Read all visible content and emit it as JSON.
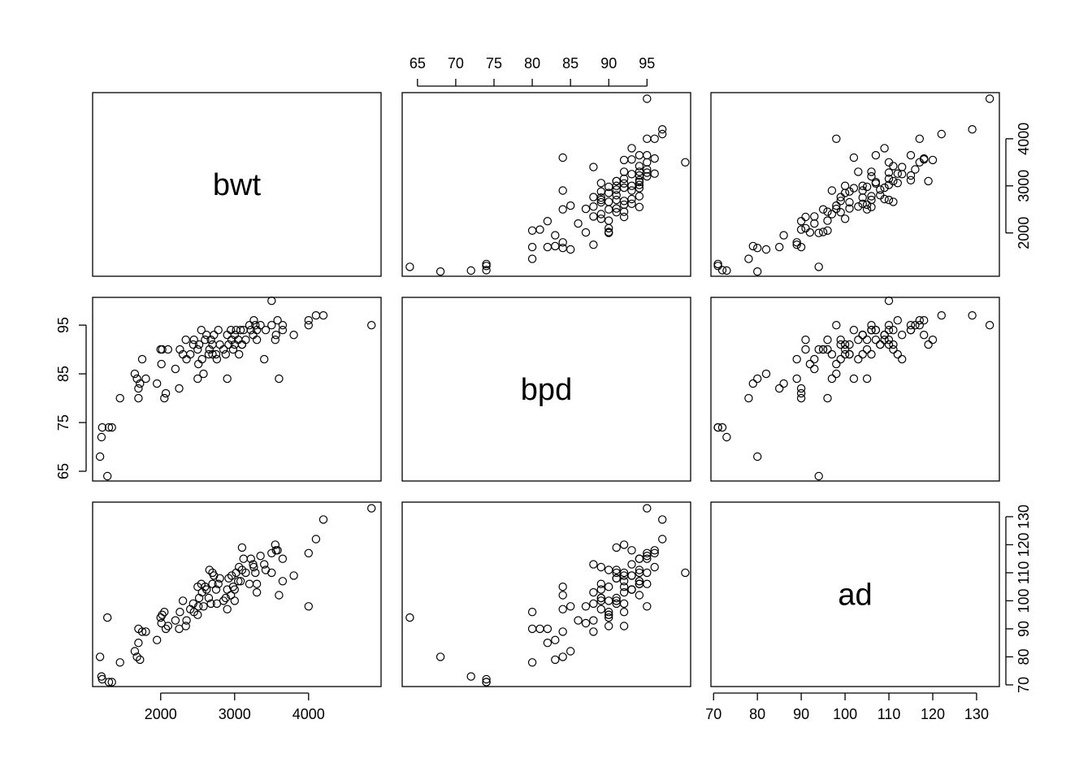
{
  "chart_data": {
    "type": "scatter",
    "subtype": "pairs",
    "variables": [
      "bwt",
      "bpd",
      "ad"
    ],
    "ranges": {
      "bwt": [
        1080,
        4980
      ],
      "bpd": [
        63,
        100.7
      ],
      "ad": [
        69.4,
        135.2
      ]
    },
    "axis_ticks": {
      "bwt": [
        2000,
        3000,
        4000
      ],
      "bpd": [
        65,
        70,
        75,
        80,
        85,
        90,
        95
      ],
      "ad": [
        70,
        80,
        90,
        100,
        110,
        120,
        130
      ]
    },
    "left_axis_ticks": {
      "bwt": [
        2000,
        3000,
        4000
      ],
      "bpd": [
        65,
        75,
        85,
        95
      ],
      "ad": [
        70,
        90,
        110,
        130
      ]
    },
    "axes_placement": {
      "top": [
        "bpd"
      ],
      "right": [
        "bwt",
        "ad"
      ],
      "bottom": [
        "bwt",
        "ad"
      ],
      "left": [
        "bpd"
      ]
    },
    "marker": "open-circle",
    "grid": false,
    "observations": {
      "bwt": [
        1180,
        1200,
        1210,
        1280,
        1300,
        1340,
        1450,
        1650,
        1680,
        1700,
        1700,
        1720,
        1750,
        1800,
        1950,
        2000,
        2010,
        2020,
        2050,
        2070,
        2100,
        2200,
        2250,
        2260,
        2300,
        2340,
        2350,
        2400,
        2440,
        2450,
        2500,
        2500,
        2510,
        2520,
        2550,
        2560,
        2580,
        2600,
        2620,
        2650,
        2660,
        2680,
        2700,
        2700,
        2720,
        2750,
        2760,
        2780,
        2800,
        2850,
        2880,
        2900,
        2900,
        2920,
        2950,
        2960,
        2980,
        3000,
        3000,
        3020,
        3050,
        3060,
        3080,
        3100,
        3100,
        3120,
        3150,
        3200,
        3220,
        3250,
        3260,
        3280,
        3300,
        3300,
        3350,
        3400,
        3420,
        3500,
        3500,
        3550,
        3560,
        3580,
        3600,
        3650,
        3650,
        3800,
        4000,
        4000,
        4100,
        4200,
        4850
      ],
      "bpd": [
        68,
        72,
        74,
        64,
        74,
        74,
        80,
        85,
        84,
        82,
        80,
        83,
        88,
        84,
        83,
        90,
        87,
        90,
        80,
        81,
        90,
        86,
        82,
        90,
        89,
        92,
        88,
        89,
        91,
        92,
        90,
        84,
        87,
        91,
        94,
        88,
        85,
        92,
        93,
        89,
        90,
        92,
        89,
        91,
        93,
        89,
        88,
        94,
        91,
        90,
        89,
        93,
        84,
        91,
        94,
        92,
        90,
        93,
        91,
        94,
        92,
        89,
        94,
        91,
        91,
        94,
        92,
        95,
        94,
        93,
        96,
        95,
        94,
        92,
        95,
        88,
        94,
        95,
        100,
        92,
        93,
        96,
        84,
        94,
        95,
        93,
        96,
        95,
        97,
        97,
        95
      ],
      "ad": [
        80,
        73,
        72,
        94,
        71,
        71,
        78,
        82,
        80,
        85,
        90,
        79,
        89,
        89,
        86,
        94,
        92,
        95,
        96,
        90,
        91,
        93,
        90,
        96,
        100,
        91,
        93,
        97,
        99,
        96,
        95,
        105,
        98,
        101,
        106,
        103,
        98,
        105,
        104,
        101,
        111,
        99,
        106,
        110,
        109,
        104,
        99,
        106,
        108,
        100,
        101,
        104,
        97,
        108,
        102,
        109,
        105,
        104,
        100,
        110,
        107,
        112,
        107,
        119,
        111,
        115,
        110,
        106,
        115,
        113,
        112,
        110,
        106,
        103,
        116,
        113,
        111,
        117,
        110,
        120,
        118,
        118,
        102,
        107,
        115,
        109,
        117,
        98,
        122,
        129,
        133
      ]
    }
  }
}
